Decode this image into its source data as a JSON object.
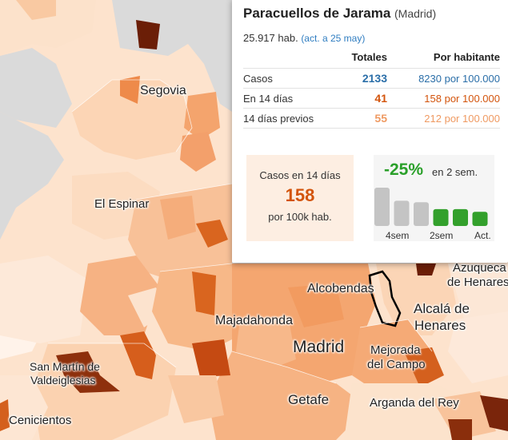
{
  "map": {
    "labels": [
      {
        "text": "Segovia"
      },
      {
        "text": "El Espinar"
      },
      {
        "text": "Alcobendas"
      },
      {
        "text": "Azuqueca"
      },
      {
        "text": "de Henares"
      },
      {
        "text": "Majadahonda"
      },
      {
        "text": "Alcalá de"
      },
      {
        "text": "Henares"
      },
      {
        "text": "Madrid"
      },
      {
        "text": "Mejorada"
      },
      {
        "text": "del Campo"
      },
      {
        "text": "San Martín de"
      },
      {
        "text": "Valdeiglesias"
      },
      {
        "text": "Getafe"
      },
      {
        "text": "Arganda del Rey"
      },
      {
        "text": "Cenicientos"
      }
    ]
  },
  "panel": {
    "title": "Paracuellos de Jarama",
    "province": "(Madrid)",
    "population": "25.917 hab.",
    "updated": "(act. a 25 may)",
    "col_totals": "Totales",
    "col_per": "Por habitante",
    "rows": [
      {
        "label": "Casos",
        "total": "2133",
        "per": "8230 por 100.000",
        "color": "#2a6ea8"
      },
      {
        "label": "En 14 días",
        "total": "41",
        "per": "158 por 100.000",
        "color": "#d3540c"
      },
      {
        "label": "14 días previos",
        "total": "55",
        "per": "212 por 100.000",
        "color": "#ef9a62"
      }
    ],
    "box": {
      "line1": "Casos en 14 días",
      "value": "158",
      "line3": "por 100k hab."
    },
    "trend": {
      "pct": "-25%",
      "pct_label": "en 2 sem.",
      "bars": [
        {
          "level": 1.0,
          "color": "#c4c4c4"
        },
        {
          "level": 0.66,
          "color": "#c4c4c4"
        },
        {
          "level": 0.62,
          "color": "#c4c4c4"
        },
        {
          "level": 0.44,
          "color": "#33a02c"
        },
        {
          "level": 0.44,
          "color": "#33a02c"
        },
        {
          "level": 0.37,
          "color": "#33a02c"
        }
      ],
      "axis": [
        "4sem",
        "2sem",
        "Act."
      ]
    }
  }
}
